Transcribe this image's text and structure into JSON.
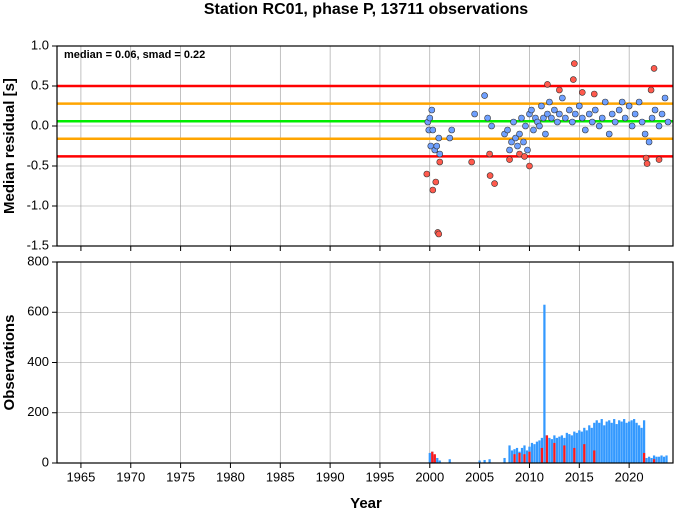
{
  "chart_data": [
    {
      "type": "scatter",
      "title": "Station RC01, phase P, 13711 observations",
      "annotation": "median = 0.06, smad = 0.22",
      "ylabel": "Median residual [s]",
      "xlim": [
        1962.6,
        2024.4
      ],
      "xticks": [
        1965,
        1970,
        1975,
        1980,
        1985,
        1990,
        1995,
        2000,
        2005,
        2010,
        2015,
        2020
      ],
      "ylim": [
        -1.5,
        1.0
      ],
      "yticks": [
        {
          "value": 1,
          "label": "1.0"
        },
        0.5,
        {
          "value": 0,
          "label": "0.0"
        },
        -0.5,
        {
          "value": -1,
          "label": "-1.0"
        },
        -1.5
      ],
      "grid": true,
      "hlines": [
        {
          "value": 0.5,
          "color": "#ff0000"
        },
        {
          "value": 0.28,
          "color": "#ffa500"
        },
        {
          "value": 0.06,
          "color": "#00ee00"
        },
        {
          "value": -0.16,
          "color": "#ffa500"
        },
        {
          "value": -0.38,
          "color": "#ff0000"
        }
      ],
      "series": [
        {
          "color": "#6fa0ff",
          "x": [
            1999.8,
            1999.9,
            2000.0,
            2000.1,
            2000.2,
            2000.3,
            2000.5,
            2000.7,
            2000.9,
            2001.0,
            2002.0,
            2002.2,
            2004.5,
            2005.5,
            2005.8,
            2006.2,
            2007.5,
            2007.8,
            2008.0,
            2008.2,
            2008.4,
            2008.6,
            2008.8,
            2009.0,
            2009.2,
            2009.4,
            2009.6,
            2009.8,
            2010.0,
            2010.2,
            2010.4,
            2010.6,
            2010.8,
            2011.0,
            2011.2,
            2011.4,
            2011.6,
            2011.8,
            2012.0,
            2012.2,
            2012.5,
            2012.8,
            2013.0,
            2013.3,
            2013.6,
            2014.0,
            2014.3,
            2014.6,
            2015.0,
            2015.3,
            2015.6,
            2016.0,
            2016.3,
            2016.6,
            2017.0,
            2017.3,
            2017.6,
            2018.0,
            2018.3,
            2018.6,
            2019.0,
            2019.3,
            2019.6,
            2020.0,
            2020.3,
            2020.6,
            2021.0,
            2021.3,
            2021.6,
            2022.0,
            2022.3,
            2022.6,
            2023.0,
            2023.3,
            2023.6,
            2023.9
          ],
          "values": [
            0.05,
            -0.05,
            0.1,
            -0.25,
            0.2,
            -0.05,
            -0.3,
            -0.25,
            -0.15,
            -0.35,
            -0.15,
            -0.05,
            0.15,
            0.38,
            0.1,
            0.0,
            -0.1,
            -0.05,
            -0.3,
            -0.2,
            0.05,
            -0.15,
            -0.25,
            -0.1,
            0.1,
            -0.2,
            0.0,
            -0.3,
            0.15,
            0.2,
            -0.05,
            0.1,
            0.05,
            0.0,
            0.25,
            0.1,
            -0.1,
            0.15,
            0.3,
            0.1,
            0.2,
            0.05,
            0.15,
            0.35,
            0.1,
            0.2,
            0.05,
            0.15,
            0.25,
            0.1,
            -0.05,
            0.15,
            0.05,
            0.2,
            0.0,
            0.1,
            0.3,
            -0.1,
            0.15,
            0.05,
            0.2,
            0.3,
            0.1,
            0.25,
            0.0,
            0.15,
            0.3,
            0.05,
            -0.1,
            -0.2,
            0.1,
            0.2,
            0.0,
            0.15,
            0.35,
            0.05
          ]
        },
        {
          "color": "#ff5a4d",
          "x": [
            1999.7,
            2000.3,
            2000.6,
            2000.8,
            2000.9,
            2001.0,
            2004.2,
            2006.0,
            2006.05,
            2006.5,
            2008.0,
            2009.0,
            2009.5,
            2010.0,
            2011.8,
            2013.0,
            2014.4,
            2014.5,
            2015.3,
            2016.5,
            2021.7,
            2021.8,
            2022.2,
            2022.5,
            2023.0
          ],
          "values": [
            -0.6,
            -0.8,
            -0.7,
            -1.33,
            -1.35,
            -0.45,
            -0.45,
            -0.35,
            -0.62,
            -0.72,
            -0.42,
            -0.35,
            -0.38,
            -0.5,
            0.52,
            0.45,
            0.58,
            0.78,
            0.42,
            0.4,
            -0.4,
            -0.47,
            0.45,
            0.72,
            -0.42
          ]
        }
      ]
    },
    {
      "type": "bar",
      "ylabel": "Observations",
      "xlabel": "Year",
      "xlim": [
        1962.6,
        2024.4
      ],
      "xticks": [
        1965,
        1970,
        1975,
        1980,
        1985,
        1990,
        1995,
        2000,
        2005,
        2010,
        2015,
        2020
      ],
      "ylim": [
        0,
        800
      ],
      "yticks": [
        0,
        200,
        400,
        600,
        800
      ],
      "grid": true,
      "series": [
        {
          "color": "#3399ff",
          "x": [
            2000.0,
            2000.25,
            2000.5,
            2000.75,
            2001.0,
            2002.0,
            2005.0,
            2005.5,
            2006.0,
            2007.5,
            2008.0,
            2008.25,
            2008.5,
            2008.75,
            2009.0,
            2009.25,
            2009.5,
            2009.75,
            2010.0,
            2010.25,
            2010.5,
            2010.75,
            2011.0,
            2011.25,
            2011.5,
            2011.75,
            2012.0,
            2012.25,
            2012.5,
            2012.75,
            2013.0,
            2013.25,
            2013.5,
            2013.75,
            2014.0,
            2014.25,
            2014.5,
            2014.75,
            2015.0,
            2015.25,
            2015.5,
            2015.75,
            2016.0,
            2016.25,
            2016.5,
            2016.75,
            2017.0,
            2017.25,
            2017.5,
            2017.75,
            2018.0,
            2018.25,
            2018.5,
            2018.75,
            2019.0,
            2019.25,
            2019.5,
            2019.75,
            2020.0,
            2020.25,
            2020.5,
            2020.75,
            2021.0,
            2021.25,
            2021.5,
            2021.75,
            2022.0,
            2022.25,
            2022.5,
            2022.75,
            2023.0,
            2023.25,
            2023.5,
            2023.75
          ],
          "values": [
            40,
            45,
            30,
            20,
            10,
            15,
            10,
            12,
            15,
            20,
            70,
            50,
            55,
            60,
            45,
            60,
            70,
            50,
            65,
            80,
            75,
            85,
            90,
            100,
            630,
            110,
            100,
            95,
            110,
            100,
            105,
            110,
            100,
            120,
            115,
            110,
            125,
            120,
            130,
            125,
            140,
            130,
            150,
            140,
            160,
            170,
            160,
            175,
            150,
            165,
            170,
            160,
            175,
            155,
            170,
            165,
            175,
            160,
            165,
            170,
            175,
            160,
            150,
            140,
            170,
            20,
            25,
            20,
            30,
            25,
            25,
            30,
            25,
            30
          ]
        },
        {
          "color": "#ff1a1a",
          "x": [
            2000.25,
            2000.5,
            2008.5,
            2009.0,
            2009.5,
            2010.0,
            2011.25,
            2011.75,
            2012.5,
            2013.5,
            2014.5,
            2015.5,
            2016.5,
            2021.5,
            2022.5
          ],
          "values": [
            45,
            35,
            35,
            40,
            35,
            45,
            60,
            110,
            80,
            70,
            60,
            75,
            50,
            40,
            15
          ]
        }
      ]
    }
  ]
}
